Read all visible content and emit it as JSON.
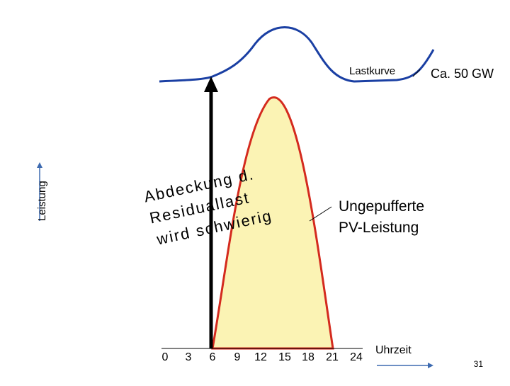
{
  "y_axis_label": "Leistung",
  "x_axis_label": "Uhrzeit",
  "x_ticks": [
    "0",
    "3",
    "6",
    "9",
    "12",
    "15",
    "18",
    "21",
    "24"
  ],
  "load_curve_label": "Lastkurve",
  "peak_label": "Ca. 50 GW",
  "pv_label_line1": "Ungepufferte",
  "pv_label_line2": "PV-Leistung",
  "annotation_lines": [
    "Abdeckung d.",
    "Residuallast",
    "wird schwierig"
  ],
  "page_number": "31",
  "colors": {
    "load_curve": "#1a3fa3",
    "pv_fill": "#fbf3b4",
    "pv_stroke": "#d42a1e",
    "axis_arrow": "#3d6ab0"
  }
}
